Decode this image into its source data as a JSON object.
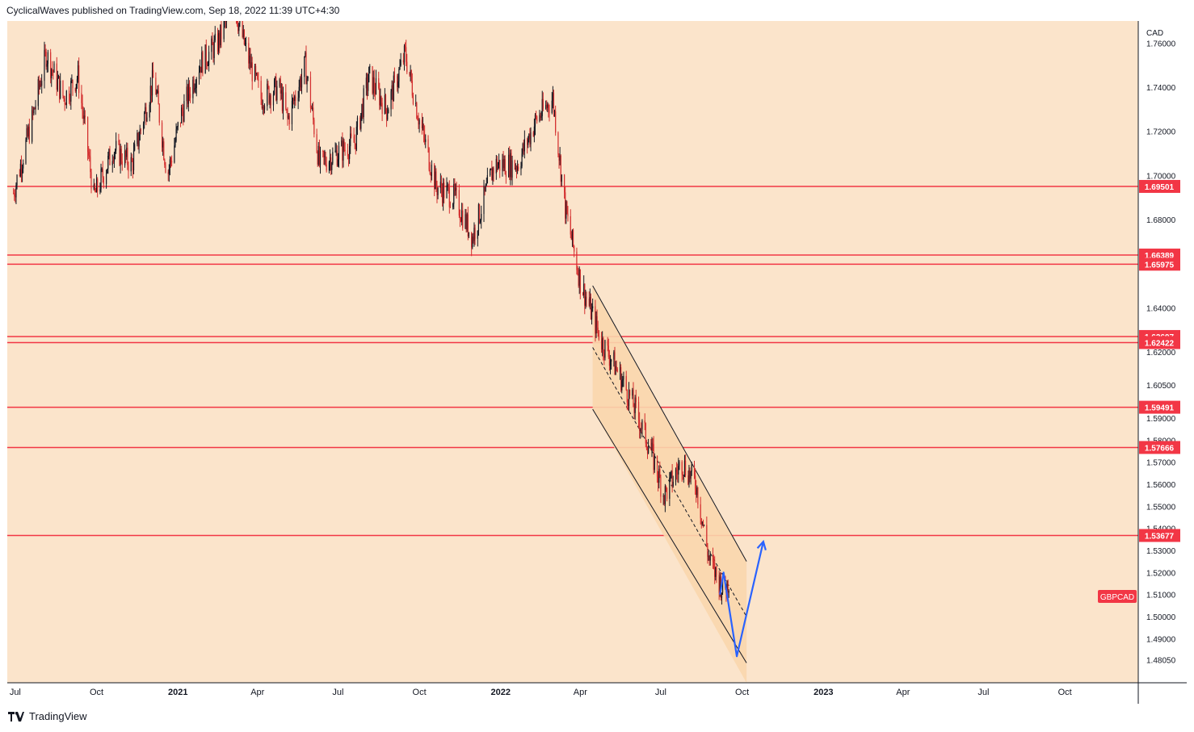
{
  "header": {
    "publisher_text": "CyclicalWaves published on TradingView.com, Sep 18, 2022 11:39 UTC+4:30"
  },
  "footer": {
    "brand": "TradingView"
  },
  "colors": {
    "background": "#fbe4cb",
    "channel_fill": "#f9d6ad",
    "level_line": "#f23645",
    "arrow": "#2962ff",
    "candle": "#d32f2f",
    "candle_up": "#131722",
    "axis_text": "#131722"
  },
  "chart_data": {
    "type": "candlestick",
    "symbol": "GBPCAD",
    "currency": "CAD",
    "y_axis": {
      "range": [
        1.47,
        1.77
      ],
      "ticks": [
        "1.76000",
        "1.74000",
        "1.72000",
        "1.70000",
        "1.68000",
        "1.64000",
        "1.62000",
        "1.60500",
        "1.59000",
        "1.58000",
        "1.57000",
        "1.56000",
        "1.55000",
        "1.54000",
        "1.53000",
        "1.52000",
        "1.51000",
        "1.50000",
        "1.49000",
        "1.48050"
      ]
    },
    "x_axis": {
      "ticks": [
        "Jul",
        "Oct",
        "2021",
        "Apr",
        "Jul",
        "Oct",
        "2022",
        "Apr",
        "Jul",
        "Oct",
        "2023",
        "Apr",
        "Jul",
        "Oct"
      ],
      "bold": [
        "2021",
        "2022",
        "2023"
      ]
    },
    "horizontal_levels": [
      "1.69501",
      "1.66389",
      "1.65975",
      "1.62697",
      "1.62422",
      "1.59491",
      "1.57666",
      "1.53677"
    ],
    "symbol_label": "GBPCAD",
    "price_path": [
      {
        "date": "2020-06-29",
        "price": 1.692
      },
      {
        "date": "2020-07-20",
        "price": 1.725
      },
      {
        "date": "2020-08-05",
        "price": 1.755
      },
      {
        "date": "2020-08-25",
        "price": 1.735
      },
      {
        "date": "2020-09-10",
        "price": 1.745
      },
      {
        "date": "2020-09-28",
        "price": 1.69
      },
      {
        "date": "2020-10-20",
        "price": 1.712
      },
      {
        "date": "2020-11-10",
        "price": 1.705
      },
      {
        "date": "2020-12-05",
        "price": 1.745
      },
      {
        "date": "2020-12-20",
        "price": 1.7
      },
      {
        "date": "2021-01-05",
        "price": 1.728
      },
      {
        "date": "2021-01-25",
        "price": 1.75
      },
      {
        "date": "2021-02-15",
        "price": 1.76
      },
      {
        "date": "2021-03-05",
        "price": 1.778
      },
      {
        "date": "2021-03-20",
        "price": 1.755
      },
      {
        "date": "2021-04-05",
        "price": 1.735
      },
      {
        "date": "2021-04-25",
        "price": 1.74
      },
      {
        "date": "2021-05-05",
        "price": 1.725
      },
      {
        "date": "2021-05-25",
        "price": 1.75
      },
      {
        "date": "2021-06-10",
        "price": 1.705
      },
      {
        "date": "2021-06-30",
        "price": 1.71
      },
      {
        "date": "2021-07-20",
        "price": 1.715
      },
      {
        "date": "2021-08-05",
        "price": 1.745
      },
      {
        "date": "2021-08-25",
        "price": 1.73
      },
      {
        "date": "2021-09-15",
        "price": 1.755
      },
      {
        "date": "2021-10-01",
        "price": 1.725
      },
      {
        "date": "2021-10-20",
        "price": 1.695
      },
      {
        "date": "2021-11-10",
        "price": 1.69
      },
      {
        "date": "2021-11-30",
        "price": 1.672
      },
      {
        "date": "2021-12-25",
        "price": 1.705
      },
      {
        "date": "2022-01-20",
        "price": 1.705
      },
      {
        "date": "2022-02-10",
        "price": 1.725
      },
      {
        "date": "2022-03-01",
        "price": 1.735
      },
      {
        "date": "2022-03-15",
        "price": 1.685
      },
      {
        "date": "2022-04-01",
        "price": 1.652
      },
      {
        "date": "2022-04-25",
        "price": 1.625
      },
      {
        "date": "2022-05-15",
        "price": 1.61
      },
      {
        "date": "2022-06-01",
        "price": 1.595
      },
      {
        "date": "2022-06-20",
        "price": 1.575
      },
      {
        "date": "2022-07-05",
        "price": 1.555
      },
      {
        "date": "2022-07-25",
        "price": 1.57
      },
      {
        "date": "2022-08-10",
        "price": 1.56
      },
      {
        "date": "2022-08-25",
        "price": 1.525
      },
      {
        "date": "2022-09-10",
        "price": 1.512
      },
      {
        "date": "2022-09-16",
        "price": 1.516
      }
    ],
    "channel": {
      "upper": [
        {
          "date": "2022-04-15",
          "price": 1.65
        },
        {
          "date": "2022-10-06",
          "price": 1.525
        }
      ],
      "lower": [
        {
          "date": "2022-04-15",
          "price": 1.594
        },
        {
          "date": "2022-10-06",
          "price": 1.479
        }
      ],
      "mid": [
        {
          "date": "2022-04-15",
          "price": 1.622
        },
        {
          "date": "2022-10-06",
          "price": 1.5
        }
      ],
      "shade": {
        "from": "2022-04-15",
        "to": "2022-10-06"
      }
    },
    "projection_arrow": [
      {
        "date": "2022-09-06",
        "price": 1.51
      },
      {
        "date": "2022-09-10",
        "price": 1.52
      },
      {
        "date": "2022-09-25",
        "price": 1.482
      },
      {
        "date": "2022-10-25",
        "price": 1.534
      }
    ]
  }
}
